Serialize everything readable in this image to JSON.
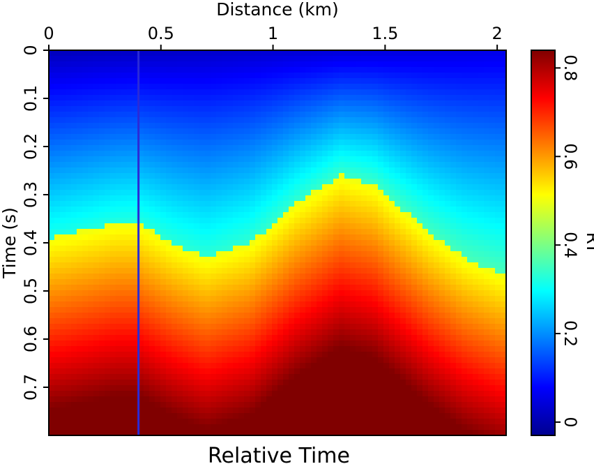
{
  "chart_data": {
    "type": "heatmap",
    "title": "Relative Time",
    "xlabel": "Distance (km)",
    "ylabel": "Time (s)",
    "xlim": [
      0,
      2.04
    ],
    "ylim": [
      0.8,
      0
    ],
    "x_ticks": [
      "0",
      "0.5",
      "1",
      "1.5",
      "2"
    ],
    "y_ticks": [
      "0",
      "0.1",
      "0.2",
      "0.3",
      "0.4",
      "0.5",
      "0.6",
      "0.7"
    ],
    "colorbar": {
      "label": "RT",
      "range": [
        -0.03,
        0.84
      ],
      "ticks": [
        "0",
        "0.2",
        "0.4",
        "0.6",
        "0.8"
      ],
      "colormap": "jet"
    },
    "field_description_values": {
      "horizon_boundary_time_s": [
        [
          0.0,
          0.39
        ],
        [
          0.1,
          0.38
        ],
        [
          0.2,
          0.37
        ],
        [
          0.3,
          0.36
        ],
        [
          0.4,
          0.36
        ],
        [
          0.55,
          0.4
        ],
        [
          0.7,
          0.43
        ],
        [
          0.9,
          0.4
        ],
        [
          1.1,
          0.32
        ],
        [
          1.3,
          0.26
        ],
        [
          1.45,
          0.28
        ],
        [
          1.55,
          0.32
        ],
        [
          1.7,
          0.38
        ],
        [
          1.85,
          0.43
        ],
        [
          2.04,
          0.47
        ]
      ],
      "low_value_at_top_left": 0.0,
      "max_value_bottom": 0.84,
      "vertical_artifact_x_km": 0.4
    }
  }
}
